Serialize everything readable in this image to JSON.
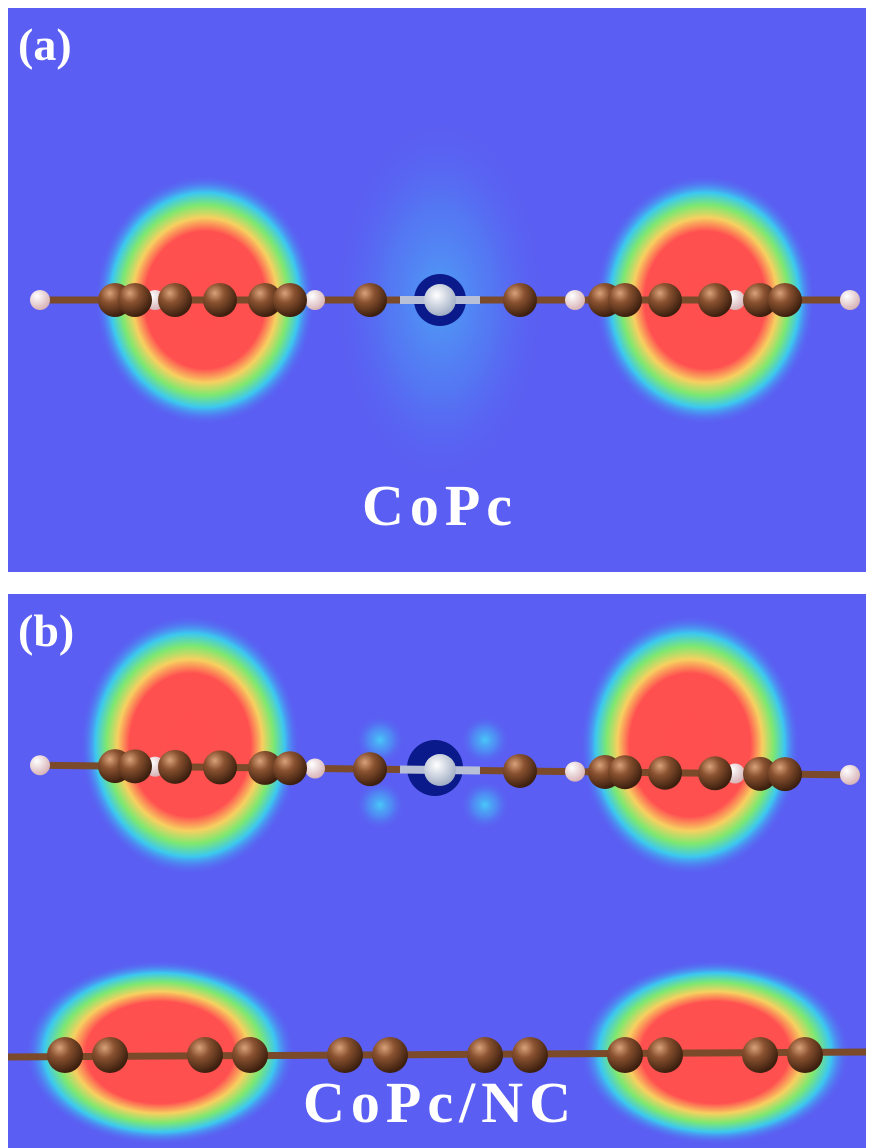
{
  "panels": [
    {
      "label": "(a)",
      "caption": "CoPc"
    },
    {
      "label": "(b)",
      "caption": "CoPc/NC"
    }
  ]
}
